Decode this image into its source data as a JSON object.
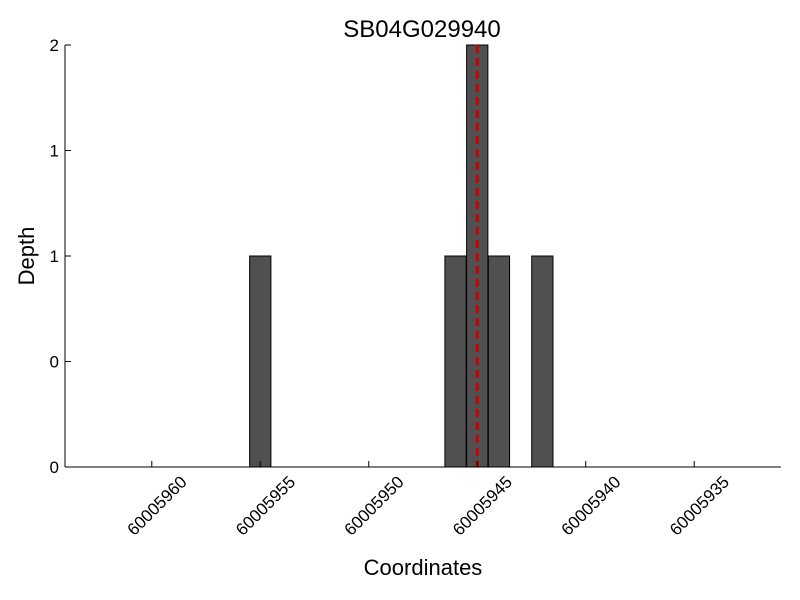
{
  "chart_data": {
    "type": "bar",
    "title": "SB04G029940",
    "xlabel": "Coordinates",
    "ylabel": "Depth",
    "x_axis_reversed": true,
    "xlim": [
      60005964,
      60005931
    ],
    "ylim": [
      0,
      2
    ],
    "x_ticks": [
      60005960,
      60005955,
      60005950,
      60005945,
      60005940,
      60005935
    ],
    "x_tick_labels": [
      "60005960",
      "60005955",
      "60005950",
      "60005945",
      "60005940",
      "60005935"
    ],
    "y_ticks": [
      0,
      0.5,
      1,
      1.5,
      2
    ],
    "y_tick_labels": [
      "0",
      "0",
      "1",
      "1",
      "2"
    ],
    "bar_positions": [
      60005955,
      60005946,
      60005945,
      60005944,
      60005942
    ],
    "values": [
      1,
      1,
      2,
      1,
      1
    ],
    "bar_color": "#505050",
    "marker_line": {
      "x": 60005945,
      "color": "#cc0000",
      "style": "dashed"
    },
    "grid": false
  }
}
